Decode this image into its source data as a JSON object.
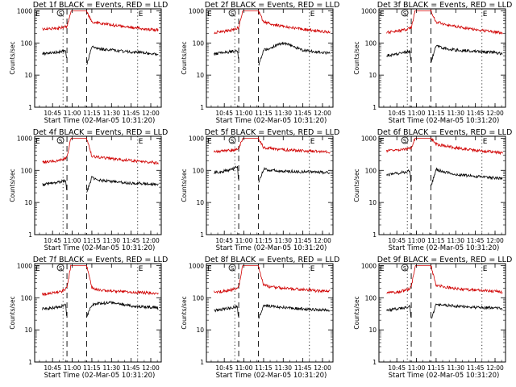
{
  "colors": {
    "events": "#000000",
    "lld": "#d00000",
    "axes": "#000000",
    "background": "#ffffff"
  },
  "common": {
    "xlabel": "Start Time (02-Mar-05 10:31:20)",
    "ylabel": "Counts/sec",
    "x_ticks": [
      "10:45",
      "11:00",
      "11:15",
      "11:30",
      "11:45",
      "12:00"
    ],
    "y_ticks": [
      "1",
      "10",
      "100",
      "1000"
    ],
    "markers": {
      "E_left": "E",
      "S": "S",
      "E_right": "E"
    }
  },
  "chart_data": [
    {
      "type": "line",
      "title": "Det 1f BLACK = Events, RED = LLD",
      "ylim": [
        1,
        1000
      ],
      "yscale": "log",
      "xlabel": "Start Time (02-Mar-05 10:31:20)",
      "ylabel": "Counts/sec",
      "x_ticks": [
        "10:45",
        "11:00",
        "11:15",
        "11:30",
        "11:45",
        "12:00"
      ],
      "series": [
        {
          "name": "LLD",
          "x": [
            "10:37",
            "10:45",
            "10:52",
            "10:56",
            "10:59",
            "11:02",
            "11:07",
            "11:11",
            "11:15",
            "11:20",
            "11:30",
            "11:45",
            "12:00",
            "12:06"
          ],
          "values": [
            270,
            280,
            300,
            330,
            1000,
            1000,
            1000,
            1000,
            450,
            420,
            360,
            300,
            260,
            250
          ]
        },
        {
          "name": "Events",
          "x": [
            "10:37",
            "10:45",
            "10:52",
            "10:55",
            "10:56",
            "11:10",
            "11:11",
            "11:15",
            "11:20",
            "11:30",
            "11:45",
            "12:00",
            "12:06"
          ],
          "values": [
            45,
            50,
            55,
            60,
            25,
            null,
            20,
            75,
            65,
            60,
            52,
            47,
            45
          ]
        }
      ]
    },
    {
      "type": "line",
      "title": "Det 2f BLACK = Events, RED = LLD",
      "ylim": [
        1,
        1000
      ],
      "yscale": "log",
      "xlabel": "Start Time (02-Mar-05 10:31:20)",
      "ylabel": "Counts/sec",
      "x_ticks": [
        "10:45",
        "11:00",
        "11:15",
        "11:30",
        "11:45",
        "12:00"
      ],
      "series": [
        {
          "name": "LLD",
          "x": [
            "10:37",
            "10:45",
            "10:52",
            "10:56",
            "10:59",
            "11:02",
            "11:07",
            "11:11",
            "11:15",
            "11:20",
            "11:30",
            "11:45",
            "12:00",
            "12:06"
          ],
          "values": [
            210,
            230,
            260,
            300,
            1000,
            1000,
            1000,
            1000,
            450,
            400,
            330,
            270,
            230,
            220
          ]
        },
        {
          "name": "Events",
          "x": [
            "10:37",
            "10:45",
            "10:52",
            "10:55",
            "10:56",
            "11:10",
            "11:11",
            "11:15",
            "11:20",
            "11:30",
            "11:45",
            "12:00",
            "12:06"
          ],
          "values": [
            45,
            50,
            55,
            58,
            25,
            null,
            20,
            60,
            70,
            100,
            60,
            50,
            48
          ]
        }
      ]
    },
    {
      "type": "line",
      "title": "Det 3f BLACK = Events, RED = LLD",
      "ylim": [
        1,
        1000
      ],
      "yscale": "log",
      "xlabel": "Start Time (02-Mar-05 10:31:20)",
      "ylabel": "Counts/sec",
      "x_ticks": [
        "10:45",
        "11:00",
        "11:15",
        "11:30",
        "11:45",
        "12:00"
      ],
      "series": [
        {
          "name": "LLD",
          "x": [
            "10:37",
            "10:45",
            "10:52",
            "10:56",
            "10:59",
            "11:02",
            "11:07",
            "11:11",
            "11:15",
            "11:20",
            "11:30",
            "11:45",
            "12:00",
            "12:06"
          ],
          "values": [
            210,
            230,
            260,
            300,
            1000,
            1000,
            1000,
            1000,
            450,
            400,
            330,
            260,
            220,
            200
          ]
        },
        {
          "name": "Events",
          "x": [
            "10:37",
            "10:45",
            "10:52",
            "10:55",
            "10:56",
            "11:10",
            "11:11",
            "11:15",
            "11:20",
            "11:30",
            "11:45",
            "12:00",
            "12:06"
          ],
          "values": [
            40,
            45,
            52,
            55,
            25,
            null,
            25,
            80,
            70,
            60,
            55,
            50,
            45
          ]
        }
      ]
    },
    {
      "type": "line",
      "title": "Det 4f BLACK = Events, RED = LLD",
      "ylim": [
        1,
        1000
      ],
      "yscale": "log",
      "xlabel": "Start Time (02-Mar-05 10:31:20)",
      "ylabel": "Counts/sec",
      "x_ticks": [
        "10:45",
        "11:00",
        "11:15",
        "11:30",
        "11:45",
        "12:00"
      ],
      "series": [
        {
          "name": "LLD",
          "x": [
            "10:37",
            "10:45",
            "10:52",
            "10:56",
            "10:59",
            "11:02",
            "11:07",
            "11:11",
            "11:15",
            "11:20",
            "11:30",
            "11:45",
            "12:00",
            "12:06"
          ],
          "values": [
            180,
            190,
            210,
            240,
            1000,
            1000,
            1000,
            1000,
            280,
            260,
            230,
            200,
            180,
            170
          ]
        },
        {
          "name": "Events",
          "x": [
            "10:37",
            "10:45",
            "10:52",
            "10:55",
            "10:56",
            "11:10",
            "11:11",
            "11:15",
            "11:20",
            "11:30",
            "11:45",
            "12:00",
            "12:06"
          ],
          "values": [
            35,
            40,
            45,
            50,
            20,
            null,
            20,
            60,
            50,
            45,
            40,
            38,
            35
          ]
        }
      ]
    },
    {
      "type": "line",
      "title": "Det 5f BLACK = Events, RED = LLD",
      "ylim": [
        1,
        1000
      ],
      "yscale": "log",
      "xlabel": "Start Time (02-Mar-05 10:31:20)",
      "ylabel": "Counts/sec",
      "x_ticks": [
        "10:45",
        "11:00",
        "11:15",
        "11:30",
        "11:45",
        "12:00"
      ],
      "series": [
        {
          "name": "LLD",
          "x": [
            "10:37",
            "10:45",
            "10:52",
            "10:56",
            "10:59",
            "11:02",
            "11:07",
            "11:11",
            "11:15",
            "11:20",
            "11:30",
            "11:45",
            "12:00",
            "12:06"
          ],
          "values": [
            380,
            400,
            430,
            480,
            1000,
            1000,
            1000,
            1000,
            500,
            480,
            440,
            400,
            380,
            370
          ]
        },
        {
          "name": "Events",
          "x": [
            "10:37",
            "10:45",
            "10:52",
            "10:55",
            "10:56",
            "11:10",
            "11:11",
            "11:15",
            "11:20",
            "11:30",
            "11:45",
            "12:00",
            "12:06"
          ],
          "values": [
            85,
            95,
            110,
            130,
            40,
            null,
            40,
            110,
            100,
            95,
            90,
            88,
            85
          ]
        }
      ]
    },
    {
      "type": "line",
      "title": "Det 6f BLACK = Events, RED = LLD",
      "ylim": [
        1,
        1000
      ],
      "yscale": "log",
      "xlabel": "Start Time (02-Mar-05 10:31:20)",
      "ylabel": "Counts/sec",
      "x_ticks": [
        "10:45",
        "11:00",
        "11:15",
        "11:30",
        "11:45",
        "12:00"
      ],
      "series": [
        {
          "name": "LLD",
          "x": [
            "10:37",
            "10:45",
            "10:52",
            "10:56",
            "10:59",
            "11:02",
            "11:07",
            "11:11",
            "11:15",
            "11:20",
            "11:30",
            "11:45",
            "12:00",
            "12:06"
          ],
          "values": [
            400,
            420,
            450,
            500,
            1000,
            1000,
            1000,
            1000,
            650,
            600,
            500,
            420,
            370,
            350
          ]
        },
        {
          "name": "Events",
          "x": [
            "10:37",
            "10:45",
            "10:52",
            "10:55",
            "10:56",
            "11:10",
            "11:11",
            "11:15",
            "11:20",
            "11:30",
            "11:45",
            "12:00",
            "12:06"
          ],
          "values": [
            70,
            80,
            90,
            100,
            30,
            null,
            30,
            110,
            90,
            75,
            65,
            58,
            55
          ]
        }
      ]
    },
    {
      "type": "line",
      "title": "Det 7f BLACK = Events, RED = LLD",
      "ylim": [
        1,
        1000
      ],
      "yscale": "log",
      "xlabel": "Start Time (02-Mar-05 10:31:20)",
      "ylabel": "Counts/sec",
      "x_ticks": [
        "10:45",
        "11:00",
        "11:15",
        "11:30",
        "11:45",
        "12:00"
      ],
      "series": [
        {
          "name": "LLD",
          "x": [
            "10:37",
            "10:45",
            "10:52",
            "10:56",
            "10:59",
            "11:02",
            "11:07",
            "11:11",
            "11:15",
            "11:20",
            "11:30",
            "11:45",
            "12:00",
            "12:06"
          ],
          "values": [
            130,
            140,
            160,
            200,
            1000,
            1000,
            1000,
            1000,
            200,
            180,
            160,
            150,
            140,
            140
          ]
        },
        {
          "name": "Events",
          "x": [
            "10:37",
            "10:45",
            "10:52",
            "10:55",
            "10:56",
            "11:10",
            "11:11",
            "11:15",
            "11:20",
            "11:30",
            "11:45",
            "12:00",
            "12:06"
          ],
          "values": [
            45,
            48,
            55,
            60,
            20,
            null,
            25,
            60,
            65,
            70,
            55,
            50,
            48
          ]
        }
      ]
    },
    {
      "type": "line",
      "title": "Det 8f BLACK = Events, RED = LLD",
      "ylim": [
        1,
        1000
      ],
      "yscale": "log",
      "xlabel": "Start Time (02-Mar-05 10:31:20)",
      "ylabel": "Counts/sec",
      "x_ticks": [
        "10:45",
        "11:00",
        "11:15",
        "11:30",
        "11:45",
        "12:00"
      ],
      "series": [
        {
          "name": "LLD",
          "x": [
            "10:37",
            "10:45",
            "10:52",
            "10:56",
            "10:59",
            "11:02",
            "11:07",
            "11:11",
            "11:15",
            "11:20",
            "11:30",
            "11:45",
            "12:00",
            "12:06"
          ],
          "values": [
            150,
            160,
            180,
            220,
            1000,
            1000,
            1000,
            1000,
            250,
            220,
            200,
            180,
            160,
            160
          ]
        },
        {
          "name": "Events",
          "x": [
            "10:37",
            "10:45",
            "10:52",
            "10:55",
            "10:56",
            "11:10",
            "11:11",
            "11:15",
            "11:20",
            "11:30",
            "11:45",
            "12:00",
            "12:06"
          ],
          "values": [
            40,
            45,
            50,
            55,
            20,
            null,
            20,
            60,
            55,
            50,
            45,
            42,
            40
          ]
        }
      ]
    },
    {
      "type": "line",
      "title": "Det 9f BLACK = Events, RED = LLD",
      "ylim": [
        1,
        1000
      ],
      "yscale": "log",
      "xlabel": "Start Time (02-Mar-05 10:31:20)",
      "ylabel": "Counts/sec",
      "x_ticks": [
        "10:45",
        "11:00",
        "11:15",
        "11:30",
        "11:45",
        "12:00"
      ],
      "series": [
        {
          "name": "LLD",
          "x": [
            "10:37",
            "10:45",
            "10:52",
            "10:56",
            "10:59",
            "11:02",
            "11:07",
            "11:11",
            "11:15",
            "11:20",
            "11:30",
            "11:45",
            "12:00",
            "12:06"
          ],
          "values": [
            140,
            150,
            170,
            210,
            1000,
            1000,
            1000,
            1000,
            250,
            220,
            190,
            170,
            160,
            150
          ]
        },
        {
          "name": "Events",
          "x": [
            "10:37",
            "10:45",
            "10:52",
            "10:55",
            "10:56",
            "11:10",
            "11:11",
            "11:15",
            "11:20",
            "11:30",
            "11:45",
            "12:00",
            "12:06"
          ],
          "values": [
            40,
            45,
            50,
            55,
            20,
            null,
            20,
            65,
            60,
            55,
            50,
            48,
            45
          ]
        }
      ]
    }
  ]
}
